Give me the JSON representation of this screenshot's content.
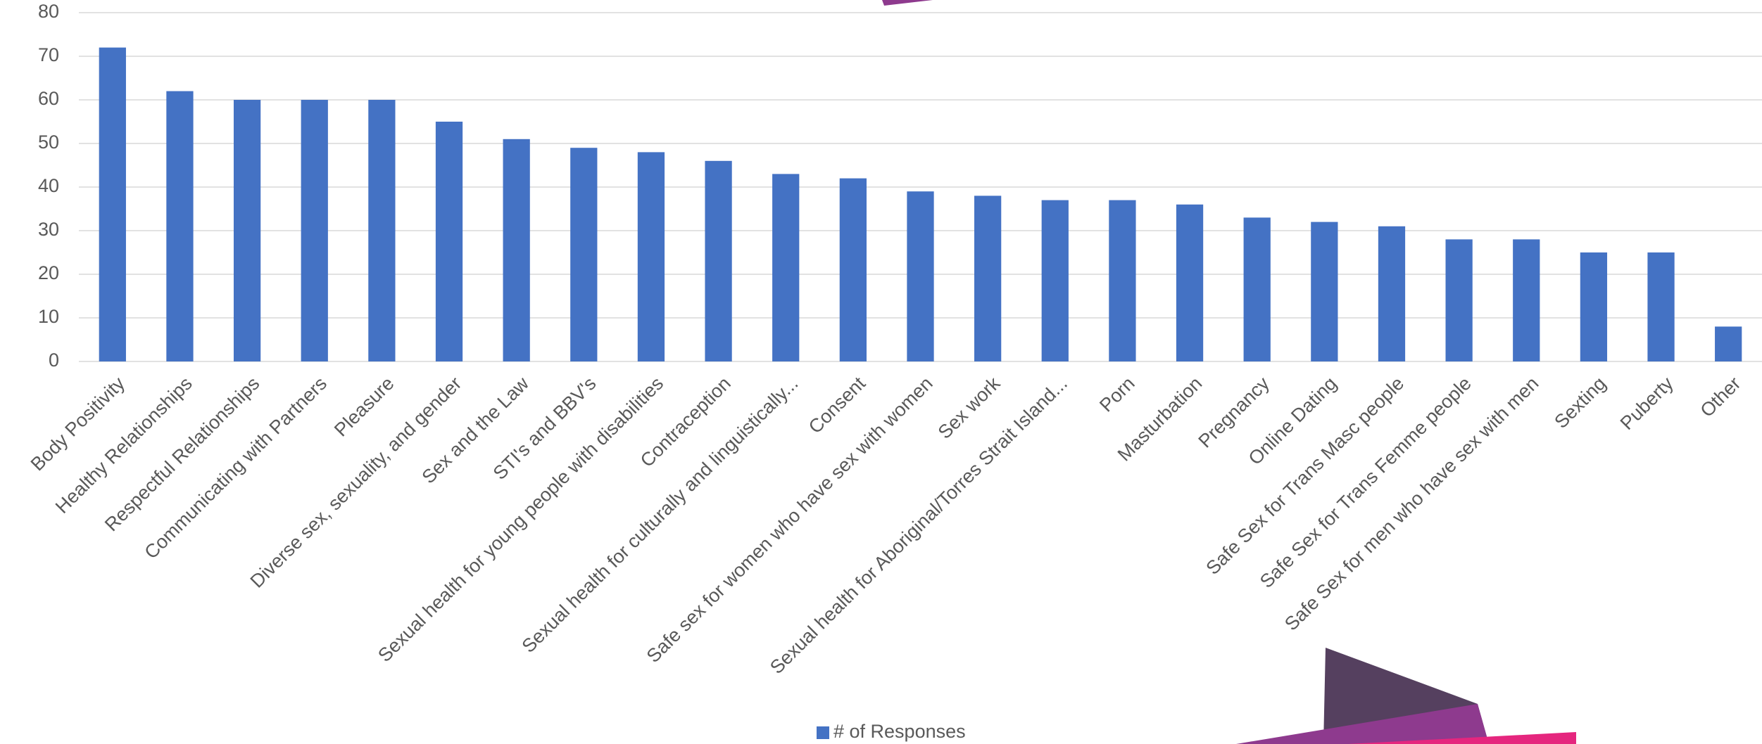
{
  "chart_data": {
    "type": "bar",
    "categories": [
      "Body Positivity",
      "Healthy Relationships",
      "Respectful Relationships",
      "Communicating with Partners",
      "Pleasure",
      "Diverse sex, sexuality, and gender",
      "Sex and the Law",
      "STI's and BBV's",
      "Sexual health for young people with disabilities",
      "Contraception",
      "Sexual health for culturally and linguistically...",
      "Consent",
      "Safe sex for women who have sex with women",
      "Sex work",
      "Sexual health for Aboriginal/Torres Strait Island...",
      "Porn",
      "Masturbation",
      "Pregnancy",
      "Online Dating",
      "Safe Sex for Trans Masc people",
      "Safe Sex for Trans Femme people",
      "Safe Sex for men who have sex with men",
      "Sexting",
      "Puberty",
      "Other"
    ],
    "series": [
      {
        "name": "# of Responses",
        "color": "#4472c4",
        "values": [
          72,
          62,
          60,
          60,
          60,
          55,
          51,
          49,
          48,
          46,
          43,
          42,
          39,
          38,
          37,
          37,
          36,
          33,
          32,
          31,
          28,
          28,
          25,
          25,
          8
        ]
      }
    ],
    "ylim": [
      0,
      80
    ],
    "yticks": [
      0,
      10,
      20,
      30,
      40,
      50,
      60,
      70,
      80
    ],
    "grid": true,
    "legend": "bottom"
  }
}
